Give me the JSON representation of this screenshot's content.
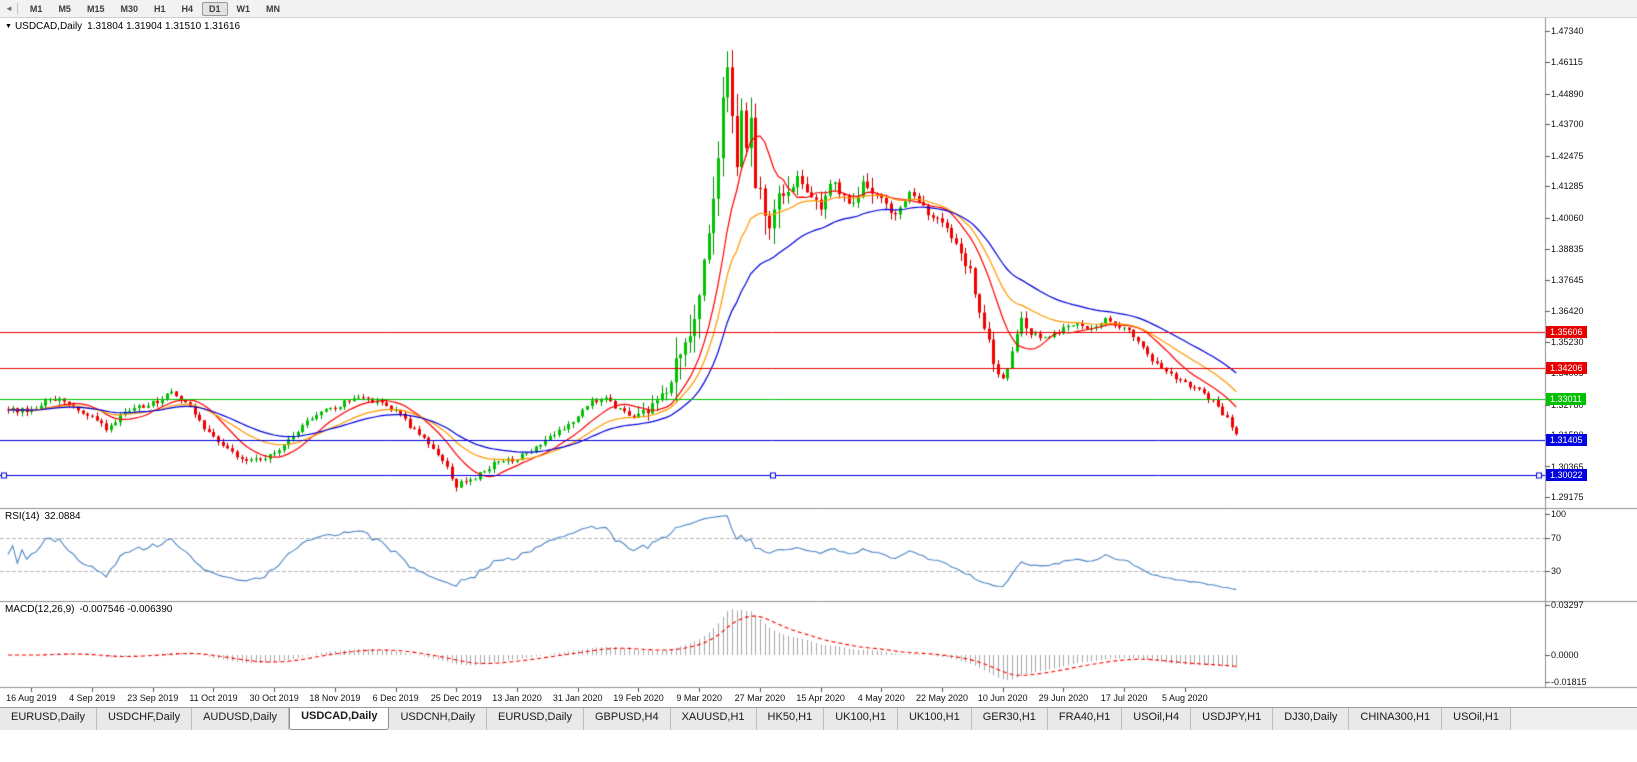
{
  "toolbar": {
    "timeframes": [
      "M1",
      "M5",
      "M15",
      "M30",
      "H1",
      "H4",
      "D1",
      "W1",
      "MN"
    ],
    "active": "D1"
  },
  "chart": {
    "symbol": "USDCAD,Daily",
    "ohlc": "1.31804 1.31904 1.31510 1.31616"
  },
  "rsi_pane": {
    "name": "RSI(14)",
    "value": "32.0884",
    "levels": [
      {
        "label": "100",
        "value": 100
      },
      {
        "label": "70",
        "value": 70
      },
      {
        "label": "30",
        "value": 30
      }
    ]
  },
  "macd_pane": {
    "name": "MACD(12,26,9)",
    "values": "-0.007546 -0.006390",
    "scale": [
      {
        "label": "0.03297",
        "value": 0.03297
      },
      {
        "label": "0.0000",
        "value": 0
      },
      {
        "label": "-0.01815",
        "value": -0.01815
      }
    ]
  },
  "tabs": {
    "active_index": 3,
    "items": [
      "EURUSD,Daily",
      "USDCHF,Daily",
      "AUDUSD,Daily",
      "USDCAD,Daily",
      "USDCNH,Daily",
      "EURUSD,Daily",
      "GBPUSD,H4",
      "XAUUSD,H1",
      "HK50,H1",
      "UK100,H1",
      "UK100,H1",
      "GER30,H1",
      "FRA40,H1",
      "USOil,H4",
      "USDJPY,H1",
      "DJ30,Daily",
      "CHINA300,H1",
      "USOil,H1"
    ]
  },
  "chart_data": {
    "type": "candlestick",
    "symbol": "USDCAD",
    "timeframe": "Daily",
    "current_ohlc": {
      "open": 1.31804,
      "high": 1.31904,
      "low": 1.3151,
      "close": 1.31616
    },
    "bars": 264,
    "first_tick_bar_offset": 5,
    "x_tick_every_bars": 13,
    "ylim": [
      1.289,
      1.479
    ],
    "price_axis_labels": [
      "1.47340",
      "1.46115",
      "1.44890",
      "1.43700",
      "1.42475",
      "1.41285",
      "1.40060",
      "1.38835",
      "1.37645",
      "1.36420",
      "1.35230",
      "1.34005",
      "1.32780",
      "1.31590",
      "1.30365",
      "1.29175"
    ],
    "x_tick_labels": [
      "16 Aug 2019",
      "4 Sep 2019",
      "23 Sep 2019",
      "11 Oct 2019",
      "30 Oct 2019",
      "18 Nov 2019",
      "6 Dec 2019",
      "25 Dec 2019",
      "13 Jan 2020",
      "31 Jan 2020",
      "19 Feb 2020",
      "9 Mar 2020",
      "27 Mar 2020",
      "15 Apr 2020",
      "4 May 2020",
      "22 May 2020",
      "10 Jun 2020",
      "29 Jun 2020",
      "17 Jul 2020",
      "5 Aug 2020"
    ],
    "close_keypoints": [
      [
        0,
        1.3255
      ],
      [
        3,
        1.3285
      ],
      [
        6,
        1.331
      ],
      [
        9,
        1.327
      ],
      [
        13,
        1.323
      ],
      [
        16,
        1.3185
      ],
      [
        20,
        1.3245
      ],
      [
        23,
        1.3265
      ],
      [
        26,
        1.3285
      ],
      [
        30,
        1.332
      ],
      [
        34,
        1.3265
      ],
      [
        37,
        1.319
      ],
      [
        39,
        1.315
      ],
      [
        43,
        1.3085
      ],
      [
        46,
        1.306
      ],
      [
        49,
        1.307
      ],
      [
        52,
        1.309
      ],
      [
        56,
        1.316
      ],
      [
        60,
        1.323
      ],
      [
        65,
        1.327
      ],
      [
        68,
        1.329
      ],
      [
        71,
        1.3305
      ],
      [
        74,
        1.3285
      ],
      [
        78,
        1.3255
      ],
      [
        82,
        1.3175
      ],
      [
        86,
        1.311
      ],
      [
        89,
        1.303
      ],
      [
        91,
        1.2965
      ],
      [
        93,
        1.2975
      ],
      [
        95,
        1.2995
      ],
      [
        99,
        1.305
      ],
      [
        104,
        1.3065
      ],
      [
        108,
        1.311
      ],
      [
        112,
        1.3165
      ],
      [
        117,
        1.323
      ],
      [
        120,
        1.3285
      ],
      [
        123,
        1.33
      ],
      [
        126,
        1.326
      ],
      [
        130,
        1.3225
      ],
      [
        133,
        1.327
      ],
      [
        136,
        1.334
      ],
      [
        139,
        1.343
      ],
      [
        141,
        1.356
      ],
      [
        143,
        1.372
      ],
      [
        145,
        1.394
      ],
      [
        147,
        1.428
      ],
      [
        148,
        1.448
      ],
      [
        149,
        1.464
      ],
      [
        150,
        1.446
      ],
      [
        151,
        1.422
      ],
      [
        152,
        1.44
      ],
      [
        153,
        1.426
      ],
      [
        154,
        1.434
      ],
      [
        155,
        1.418
      ],
      [
        156,
        1.41
      ],
      [
        158,
        1.402
      ],
      [
        160,
        1.415
      ],
      [
        162,
        1.407
      ],
      [
        164,
        1.417
      ],
      [
        166,
        1.409
      ],
      [
        169,
        1.403
      ],
      [
        171,
        1.414
      ],
      [
        173,
        1.41
      ],
      [
        176,
        1.406
      ],
      [
        178,
        1.412
      ],
      [
        182,
        1.408
      ],
      [
        185,
        1.402
      ],
      [
        188,
        1.409
      ],
      [
        191,
        1.405
      ],
      [
        195,
        1.398
      ],
      [
        198,
        1.389
      ],
      [
        201,
        1.379
      ],
      [
        204,
        1.358
      ],
      [
        206,
        1.344
      ],
      [
        208,
        1.339
      ],
      [
        210,
        1.347
      ],
      [
        212,
        1.36
      ],
      [
        214,
        1.356
      ],
      [
        217,
        1.3535
      ],
      [
        221,
        1.3575
      ],
      [
        224,
        1.36
      ],
      [
        227,
        1.357
      ],
      [
        230,
        1.3605
      ],
      [
        234,
        1.358
      ],
      [
        237,
        1.3525
      ],
      [
        240,
        1.3455
      ],
      [
        243,
        1.3405
      ],
      [
        247,
        1.3365
      ],
      [
        250,
        1.333
      ],
      [
        253,
        1.3285
      ],
      [
        256,
        1.3225
      ],
      [
        258,
        1.3162
      ]
    ],
    "horizontal_lines": [
      {
        "price": 1.35606,
        "label": "1.35606",
        "color": "#e80000",
        "selected": false
      },
      {
        "price": 1.34206,
        "label": "1.34206",
        "color": "#e80000",
        "selected": false
      },
      {
        "price": 1.33011,
        "label": "1.33011",
        "color": "#00c000",
        "selected": false
      },
      {
        "price": 1.31405,
        "label": "1.31405",
        "color": "#0000e0",
        "selected": false
      },
      {
        "price": 1.30022,
        "label": "1.30022",
        "color": "#0000e0",
        "selected": true
      }
    ],
    "moving_averages": [
      {
        "type": "sma",
        "period": 10,
        "color": "#ff0000"
      },
      {
        "type": "ema",
        "period": 20,
        "color": "#ff9900"
      },
      {
        "type": "ema",
        "period": 34,
        "color": "#0000dd"
      }
    ],
    "indicators": {
      "rsi": {
        "period": 14,
        "current": 32.0884,
        "levels": [
          70,
          30
        ],
        "color": "#4f86c6"
      },
      "macd": {
        "fast": 12,
        "slow": 26,
        "signal": 9,
        "current_macd": -0.007546,
        "current_signal": -0.00639,
        "histogram_color": "#a8a8a8",
        "signal_color": "#ff0000"
      }
    },
    "candle_colors": {
      "up": "#00c200",
      "up_wick": "#008f00",
      "down": "#f20000",
      "down_wick": "#c00000"
    }
  }
}
